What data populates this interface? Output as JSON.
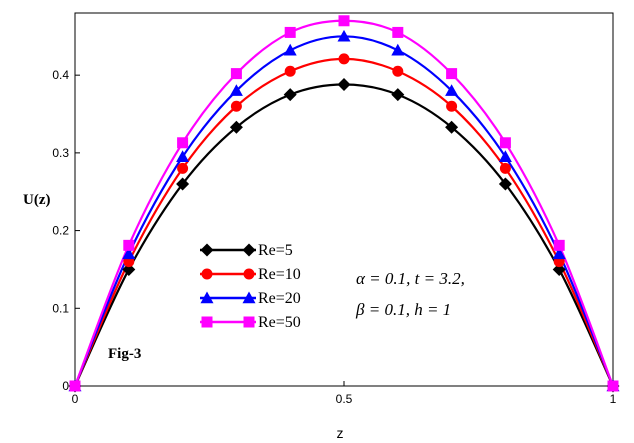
{
  "chart_data": {
    "type": "line",
    "title": "",
    "xlabel": "z",
    "ylabel": "U(z)",
    "xlim": [
      0,
      1
    ],
    "ylim": [
      0,
      0.48
    ],
    "x_ticks": [
      "0",
      "0.5",
      "1"
    ],
    "y_ticks": [
      "0",
      "0.1",
      "0.2",
      "0.3",
      "0.4"
    ],
    "x": [
      0,
      0.1,
      0.2,
      0.3,
      0.4,
      0.5,
      0.6,
      0.7,
      0.8,
      0.9,
      1.0
    ],
    "series": [
      {
        "name": "Re=5",
        "color": "#000000",
        "marker": "diamond",
        "values": [
          0,
          0.15,
          0.26,
          0.333,
          0.375,
          0.388,
          0.375,
          0.333,
          0.26,
          0.15,
          0
        ]
      },
      {
        "name": "Re=10",
        "color": "#ff0000",
        "marker": "circle",
        "values": [
          0,
          0.16,
          0.28,
          0.36,
          0.405,
          0.421,
          0.405,
          0.36,
          0.28,
          0.16,
          0
        ]
      },
      {
        "name": "Re=20",
        "color": "#0000ff",
        "marker": "triangle",
        "values": [
          0,
          0.17,
          0.295,
          0.38,
          0.432,
          0.45,
          0.432,
          0.38,
          0.295,
          0.17,
          0
        ]
      },
      {
        "name": "Re=50",
        "color": "#ff00ff",
        "marker": "square",
        "values": [
          0,
          0.181,
          0.313,
          0.402,
          0.455,
          0.47,
          0.455,
          0.402,
          0.313,
          0.181,
          0
        ]
      }
    ],
    "legend_position": "lower-left",
    "annotations": {
      "fig_label": "Fig-3",
      "param_line1": "α = 0.1, t = 3.2,",
      "param_line2": "β = 0.1,   h = 1"
    }
  }
}
